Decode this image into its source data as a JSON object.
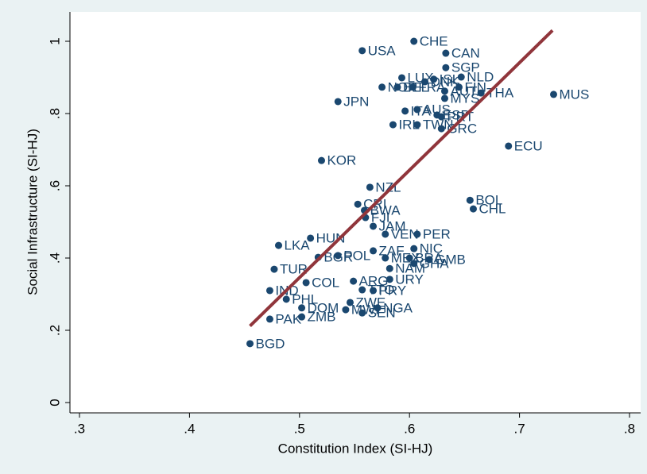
{
  "chart_data": {
    "type": "scatter",
    "x_label": "Constitution Index (SI-HJ)",
    "y_label": "Social Infrastructure (SI-HJ)",
    "color": "#1a476f",
    "labels": [
      "CHE",
      "CAN",
      "USA",
      "SGP",
      "LUX",
      "ISL",
      "NLD",
      "NOR",
      "BEL",
      "FRA",
      "DNK",
      "AUT",
      "FIN",
      "MYS",
      "THA",
      "MUS",
      "JPN",
      "ITA",
      "AUS",
      "ESP",
      "PRT",
      "IRL",
      "TWN",
      "GRC",
      "ECU",
      "KOR",
      "NZL",
      "BOL",
      "CHL",
      "CRI",
      "BWA",
      "FJI",
      "JAM",
      "VEN",
      "PER",
      "HUN",
      "LKA",
      "NIC",
      "ZAF",
      "POL",
      "BGR",
      "MEX",
      "BRA",
      "GMB",
      "GHA",
      "NAM",
      "TUR",
      "URY",
      "ARG",
      "COL",
      "IND",
      "TTO",
      "PRY",
      "PHL",
      "ZWE",
      "DOM",
      "MWI",
      "SEN",
      "NGA",
      "ZMB",
      "PAK",
      "BGD"
    ],
    "x": [
      0.604,
      0.633,
      0.557,
      0.633,
      0.593,
      0.622,
      0.647,
      0.575,
      0.589,
      0.603,
      0.614,
      0.632,
      0.645,
      0.632,
      0.665,
      0.731,
      0.535,
      0.596,
      0.607,
      0.625,
      0.629,
      0.585,
      0.607,
      0.629,
      0.69,
      0.52,
      0.564,
      0.655,
      0.658,
      0.553,
      0.559,
      0.56,
      0.567,
      0.578,
      0.607,
      0.51,
      0.481,
      0.604,
      0.567,
      0.535,
      0.517,
      0.578,
      0.6,
      0.618,
      0.604,
      0.582,
      0.477,
      0.582,
      0.549,
      0.506,
      0.473,
      0.557,
      0.567,
      0.488,
      0.546,
      0.502,
      0.542,
      0.557,
      0.571,
      0.502,
      0.473,
      0.455
    ],
    "values": [
      1.0,
      0.967,
      0.974,
      0.927,
      0.899,
      0.895,
      0.901,
      0.873,
      0.873,
      0.873,
      0.888,
      0.862,
      0.873,
      0.842,
      0.857,
      0.853,
      0.833,
      0.807,
      0.811,
      0.796,
      0.791,
      0.769,
      0.769,
      0.758,
      0.71,
      0.67,
      0.596,
      0.56,
      0.536,
      0.549,
      0.532,
      0.512,
      0.488,
      0.466,
      0.466,
      0.455,
      0.435,
      0.426,
      0.42,
      0.407,
      0.402,
      0.4,
      0.4,
      0.396,
      0.385,
      0.371,
      0.369,
      0.341,
      0.336,
      0.332,
      0.31,
      0.312,
      0.31,
      0.286,
      0.277,
      0.262,
      0.257,
      0.248,
      0.262,
      0.237,
      0.231,
      0.163
    ],
    "fit_line": {
      "x": [
        0.455,
        0.73
      ],
      "y": [
        0.212,
        1.03
      ],
      "color": "#90353b"
    },
    "xlim": [
      0.3,
      0.8
    ],
    "ylim": [
      0,
      1
    ],
    "xticks": [
      {
        "value": 0.3,
        "label": ".3"
      },
      {
        "value": 0.4,
        "label": ".4"
      },
      {
        "value": 0.5,
        "label": ".5"
      },
      {
        "value": 0.6,
        "label": ".6"
      },
      {
        "value": 0.7,
        "label": ".7"
      },
      {
        "value": 0.8,
        "label": ".8"
      }
    ],
    "yticks": [
      0,
      {
        "value": 0.2,
        "label": ".2"
      },
      {
        "value": 0.4,
        "label": ".4"
      },
      {
        "value": 0.6,
        "label": ".6"
      },
      {
        "value": 0.8,
        "label": ".8"
      },
      1
    ]
  }
}
